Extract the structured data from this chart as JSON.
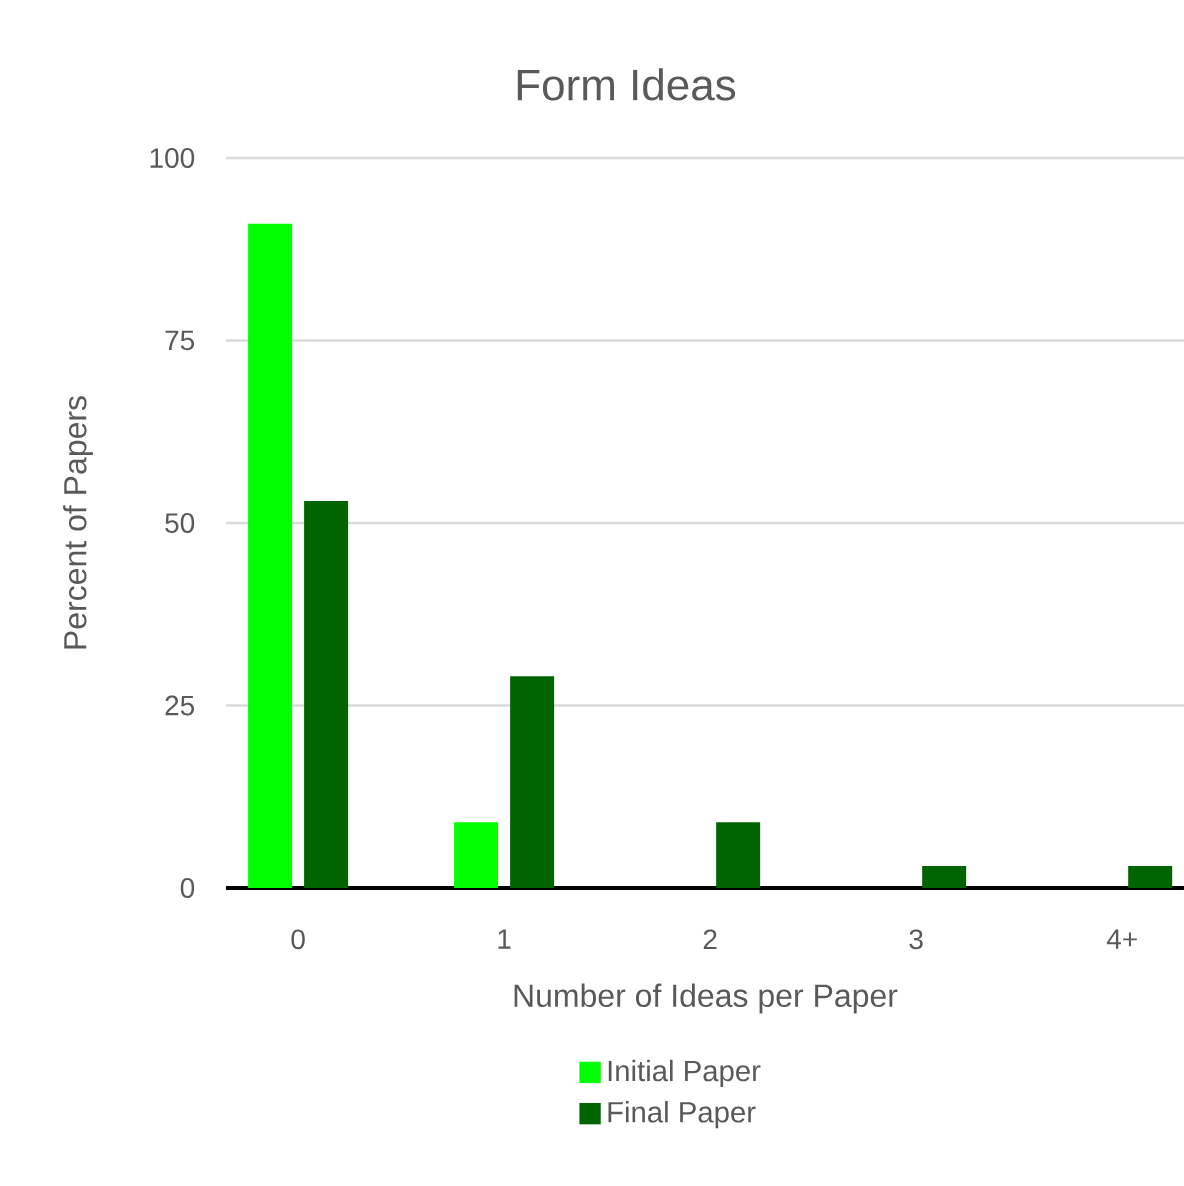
{
  "chart_data": {
    "type": "bar",
    "title": "Form Ideas",
    "xlabel": "Number of Ideas per Paper",
    "ylabel": "Percent of Papers",
    "categories": [
      "0",
      "1",
      "2",
      "3",
      "4+"
    ],
    "series": [
      {
        "name": "Initial Paper",
        "color": "#00ff00",
        "values": [
          91,
          9,
          0,
          0,
          0
        ]
      },
      {
        "name": "Final Paper",
        "color": "#006400",
        "values": [
          53,
          29,
          9,
          3,
          3
        ]
      }
    ],
    "ylim": [
      0,
      100
    ],
    "yticks": [
      0,
      25,
      50,
      75,
      100
    ],
    "grid": "y",
    "legend": "bottom"
  }
}
